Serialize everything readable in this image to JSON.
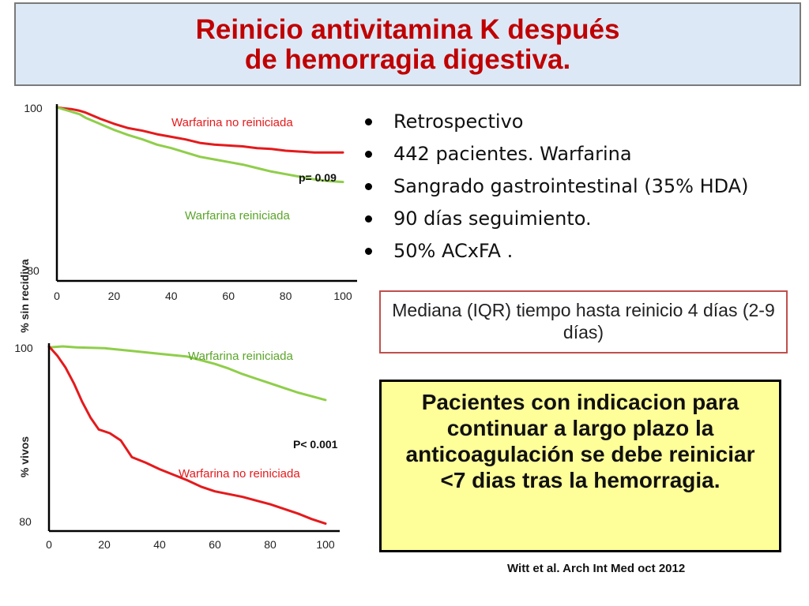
{
  "slide": {
    "title_line1": "Reinicio antivitamina K después",
    "title_line2": "de hemorragia digestiva.",
    "bullets": [
      "Retrospectivo",
      "442 pacientes. Warfarina",
      "Sangrado gastrointestinal (35% HDA)",
      "90 días seguimiento.",
      "50% ACxFA ."
    ],
    "median_text": "Mediana (IQR) tiempo hasta reinicio 4 días (2-9 días)",
    "conclusion_text": "Pacientes con indicacion para continuar a largo plazo la anticoagulación se debe reiniciar <7 dias tras la hemorragia.",
    "citation": "Witt et al. Arch Int Med oct 2012"
  },
  "colors": {
    "title": "#c00000",
    "series_no_reiniciada": "#e41a1c",
    "series_reiniciada": "#8fce4a",
    "median_border": "#c0504d",
    "conclusion_bg": "#ffff99"
  },
  "chart_data": [
    {
      "type": "line",
      "title": "",
      "xlabel": "",
      "ylabel": "% sin recidiva",
      "xlim": [
        0,
        100
      ],
      "ylim": [
        80,
        100
      ],
      "x_ticks": [
        "0",
        "20",
        "40",
        "60",
        "80",
        "100"
      ],
      "y_ticks": [
        "80",
        "100"
      ],
      "annotation": "p= 0.09",
      "series": [
        {
          "name": "Warfarina no reiniciada",
          "color": "#e41a1c",
          "x": [
            0,
            2,
            5,
            8,
            10,
            15,
            20,
            25,
            30,
            35,
            40,
            45,
            50,
            55,
            60,
            65,
            70,
            75,
            80,
            85,
            90,
            95,
            100
          ],
          "y": [
            100,
            99.9,
            99.8,
            99.6,
            99.4,
            98.7,
            98.1,
            97.6,
            97.3,
            96.9,
            96.6,
            96.3,
            95.9,
            95.7,
            95.6,
            95.5,
            95.3,
            95.2,
            95.0,
            94.9,
            94.8,
            94.8,
            94.8
          ]
        },
        {
          "name": "Warfarina reiniciada",
          "color": "#8fce4a",
          "x": [
            0,
            2,
            5,
            8,
            10,
            15,
            20,
            25,
            30,
            35,
            40,
            45,
            50,
            55,
            60,
            65,
            70,
            75,
            80,
            85,
            90,
            95,
            100
          ],
          "y": [
            100,
            99.8,
            99.5,
            99.2,
            98.8,
            98.1,
            97.4,
            96.8,
            96.3,
            95.7,
            95.3,
            94.8,
            94.3,
            94.0,
            93.7,
            93.4,
            93.0,
            92.6,
            92.3,
            92.0,
            91.7,
            91.5,
            91.4
          ]
        }
      ]
    },
    {
      "type": "line",
      "title": "",
      "xlabel": "",
      "ylabel": "% vivos",
      "xlim": [
        0,
        100
      ],
      "ylim": [
        80,
        100
      ],
      "x_ticks": [
        "0",
        "20",
        "40",
        "60",
        "80",
        "100"
      ],
      "y_ticks": [
        "80",
        "100"
      ],
      "annotation": "P<  0.001",
      "series": [
        {
          "name": "Warfarina reiniciada",
          "color": "#8fce4a",
          "x": [
            0,
            5,
            10,
            20,
            30,
            40,
            50,
            55,
            60,
            65,
            70,
            75,
            80,
            85,
            90,
            95,
            100
          ],
          "y": [
            99.9,
            100,
            99.9,
            99.8,
            99.5,
            99.2,
            98.9,
            98.5,
            98.1,
            97.6,
            97.0,
            96.5,
            96.0,
            95.5,
            95.0,
            94.6,
            94.2
          ]
        },
        {
          "name": "Warfarina no reiniciada",
          "color": "#e41a1c",
          "x": [
            0,
            3,
            6,
            9,
            12,
            15,
            18,
            22,
            26,
            30,
            35,
            40,
            45,
            50,
            55,
            60,
            65,
            70,
            75,
            80,
            85,
            90,
            95,
            100
          ],
          "y": [
            100,
            99.0,
            97.7,
            96.0,
            94.0,
            92.3,
            91.0,
            90.6,
            89.8,
            88.0,
            87.4,
            86.7,
            86.1,
            85.5,
            84.8,
            84.3,
            84.0,
            83.7,
            83.3,
            82.9,
            82.4,
            81.9,
            81.3,
            80.8
          ]
        }
      ]
    }
  ]
}
